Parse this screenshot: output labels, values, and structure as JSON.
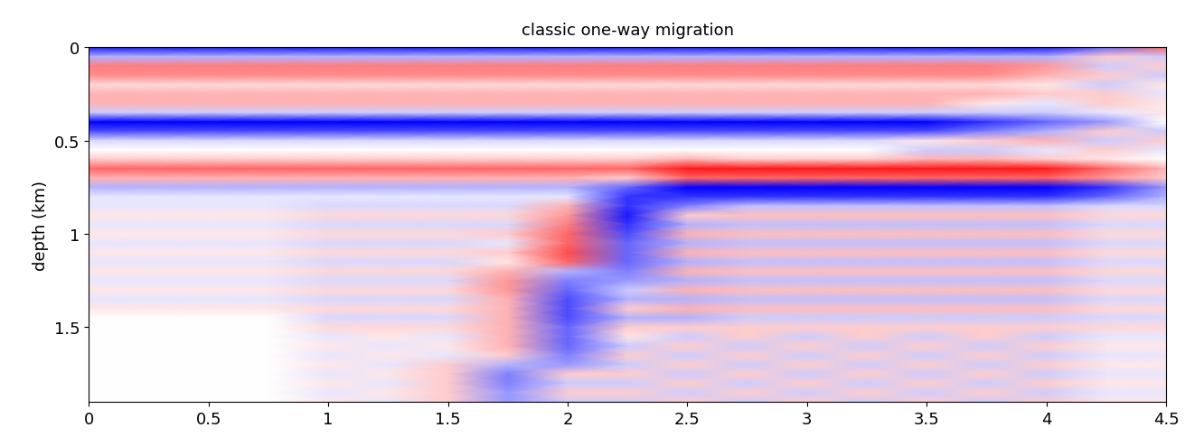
{
  "chart_data": {
    "type": "heatmap",
    "title": "classic one-way migration",
    "y_label": "depth (km)",
    "x": [
      0,
      0.25,
      0.5,
      0.75,
      1,
      1.25,
      1.5,
      1.75,
      2,
      2.25,
      2.5,
      2.75,
      3,
      3.25,
      3.5,
      3.75,
      4,
      4.25,
      4.5
    ],
    "y": [
      0,
      0.05,
      0.1,
      0.15,
      0.2,
      0.25,
      0.3,
      0.35,
      0.4,
      0.45,
      0.5,
      0.55,
      0.6,
      0.65,
      0.7,
      0.75,
      0.8,
      0.85,
      0.9,
      0.95,
      1,
      1.05,
      1.1,
      1.15,
      1.2,
      1.25,
      1.3,
      1.35,
      1.4,
      1.45,
      1.5,
      1.55,
      1.6,
      1.65,
      1.7,
      1.75,
      1.8,
      1.85,
      1.9
    ],
    "xlim": [
      0,
      4.5
    ],
    "xticks": [
      0,
      0.5,
      1,
      1.5,
      2,
      2.5,
      3,
      3.5,
      4,
      4.5
    ],
    "ylim": [
      1.9,
      0
    ],
    "yticks": [
      0,
      0.5,
      1,
      1.5
    ],
    "color_range": [
      -1,
      1
    ],
    "cells": [
      [
        -0.9,
        -0.9,
        -0.9,
        -0.9,
        -0.9,
        -0.9,
        -0.9,
        -0.9,
        -0.9,
        -0.9,
        -0.9,
        -0.9,
        -0.9,
        -0.9,
        -0.9,
        -0.9,
        -0.9,
        -0.6,
        0.6
      ],
      [
        -0.3,
        -0.3,
        -0.3,
        -0.3,
        -0.3,
        -0.3,
        -0.3,
        -0.3,
        -0.3,
        -0.3,
        -0.3,
        -0.3,
        -0.3,
        -0.3,
        -0.3,
        -0.3,
        -0.3,
        0.2,
        -0.2
      ],
      [
        0.5,
        0.5,
        0.5,
        0.5,
        0.5,
        0.5,
        0.5,
        0.5,
        0.5,
        0.5,
        0.5,
        0.5,
        0.5,
        0.5,
        0.5,
        0.5,
        0.4,
        -0.2,
        0.2
      ],
      [
        0.45,
        0.45,
        0.45,
        0.45,
        0.45,
        0.45,
        0.45,
        0.45,
        0.45,
        0.45,
        0.45,
        0.45,
        0.45,
        0.45,
        0.45,
        0.45,
        0.3,
        0.2,
        -0.2
      ],
      [
        0.15,
        0.15,
        0.15,
        0.15,
        0.15,
        0.15,
        0.15,
        0.15,
        0.15,
        0.15,
        0.15,
        0.15,
        0.15,
        0.15,
        0.15,
        0.15,
        0.1,
        -0.2,
        0.1
      ],
      [
        0.3,
        0.3,
        0.3,
        0.3,
        0.3,
        0.3,
        0.3,
        0.3,
        0.3,
        0.3,
        0.3,
        0.3,
        0.3,
        0.3,
        0.3,
        0.3,
        0.2,
        0.2,
        -0.1
      ],
      [
        0.3,
        0.3,
        0.3,
        0.3,
        0.3,
        0.3,
        0.3,
        0.3,
        0.3,
        0.3,
        0.3,
        0.3,
        0.3,
        0.3,
        0.3,
        0.1,
        -0.1,
        0.2,
        0.1
      ],
      [
        -0.2,
        -0.2,
        -0.2,
        -0.2,
        -0.2,
        -0.2,
        -0.2,
        -0.2,
        -0.2,
        -0.2,
        -0.2,
        -0.2,
        -0.2,
        -0.2,
        -0.2,
        -0.2,
        -0.2,
        -0.1,
        0.1
      ],
      [
        -1,
        -1,
        -1,
        -1,
        -1,
        -1,
        -1,
        -1,
        -1,
        -1,
        -1,
        -1,
        -1,
        -1,
        -1,
        -0.8,
        -0.6,
        -0.4,
        0
      ],
      [
        -0.7,
        -0.7,
        -0.7,
        -0.7,
        -0.7,
        -0.7,
        -0.7,
        -0.7,
        -0.7,
        -0.7,
        -0.7,
        -0.7,
        -0.7,
        -0.7,
        -0.7,
        -0.5,
        -0.3,
        0.2,
        -0.2
      ],
      [
        -0.15,
        -0.15,
        -0.15,
        -0.15,
        -0.15,
        -0.15,
        -0.15,
        -0.15,
        -0.15,
        -0.15,
        -0.15,
        -0.15,
        -0.15,
        -0.15,
        0.1,
        0.2,
        0.3,
        -0.2,
        0.2
      ],
      [
        0,
        0,
        0,
        0,
        0,
        0,
        0,
        0,
        0,
        0,
        0,
        0,
        0,
        0,
        -0.2,
        -0.2,
        -0.1,
        0.2,
        -0.1
      ],
      [
        0.2,
        0.2,
        0.2,
        0.2,
        0.2,
        0.2,
        0.2,
        0.2,
        0.2,
        0.2,
        0.3,
        0.2,
        0.2,
        0.2,
        0.3,
        0.3,
        0.2,
        0.1,
        0
      ],
      [
        0.6,
        0.6,
        0.6,
        0.6,
        0.6,
        0.6,
        0.6,
        0.6,
        0.6,
        0.6,
        0.9,
        0.9,
        0.9,
        0.9,
        0.9,
        0.9,
        0.9,
        0.6,
        0.3
      ],
      [
        0.3,
        0.3,
        0.3,
        0.3,
        0.3,
        0.3,
        0.3,
        0.3,
        0.3,
        0.2,
        0.6,
        0.6,
        0.6,
        0.6,
        0.6,
        0.6,
        0.6,
        0.4,
        0.2
      ],
      [
        -0.3,
        -0.3,
        -0.3,
        -0.3,
        -0.3,
        -0.3,
        -0.3,
        -0.3,
        -0.3,
        -0.6,
        -1,
        -1,
        -1,
        -1,
        -1,
        -1,
        -1,
        -0.8,
        -0.4
      ],
      [
        -0.1,
        -0.1,
        -0.1,
        -0.1,
        -0.1,
        -0.1,
        -0.1,
        -0.1,
        -0.1,
        -0.8,
        -0.8,
        -0.8,
        -0.8,
        -0.8,
        -0.8,
        -0.8,
        -0.8,
        -0.6,
        -0.3
      ],
      [
        -0.1,
        -0.1,
        -0.1,
        -0.1,
        -0.15,
        -0.15,
        -0.15,
        -0.15,
        0.3,
        -0.8,
        -0.5,
        -0.25,
        -0.25,
        -0.25,
        -0.25,
        -0.25,
        -0.25,
        -0.15,
        -0.15
      ],
      [
        0.1,
        0.1,
        0.1,
        0.1,
        0.15,
        0.15,
        0.15,
        0.15,
        0.4,
        -0.9,
        0.2,
        0.25,
        0.25,
        0.25,
        0.25,
        0.25,
        0.25,
        0.15,
        0.15
      ],
      [
        -0.1,
        -0.1,
        -0.1,
        -0.1,
        -0.15,
        -0.15,
        -0.15,
        -0.15,
        0.5,
        -0.8,
        -0.3,
        -0.25,
        -0.25,
        -0.25,
        -0.25,
        -0.25,
        -0.25,
        -0.15,
        -0.15
      ],
      [
        0.1,
        0.1,
        0.1,
        0.1,
        0.15,
        0.15,
        0.15,
        0.2,
        0.6,
        -0.7,
        0.3,
        0.25,
        0.25,
        0.25,
        0.25,
        0.25,
        0.25,
        0.15,
        0.15
      ],
      [
        -0.1,
        -0.1,
        -0.1,
        -0.1,
        -0.15,
        -0.15,
        -0.15,
        -0.1,
        0.6,
        -0.6,
        -0.3,
        -0.25,
        -0.25,
        -0.25,
        -0.25,
        -0.25,
        -0.25,
        -0.15,
        -0.15
      ],
      [
        0.1,
        0.1,
        0.1,
        0.1,
        0.15,
        0.15,
        0.15,
        0.2,
        0.7,
        -0.6,
        0.3,
        0.25,
        0.25,
        0.25,
        0.25,
        0.25,
        0.25,
        0.15,
        0.15
      ],
      [
        -0.1,
        -0.1,
        -0.1,
        -0.1,
        -0.15,
        -0.15,
        -0.15,
        0.1,
        0.6,
        -0.6,
        -0.3,
        -0.25,
        -0.25,
        -0.25,
        -0.25,
        -0.25,
        -0.25,
        -0.15,
        -0.15
      ],
      [
        0.1,
        0.1,
        0.1,
        0.1,
        0.15,
        0.15,
        0.15,
        0.3,
        -0.3,
        -0.5,
        0.3,
        0.25,
        0.25,
        0.25,
        0.25,
        0.25,
        0.25,
        0.15,
        0.15
      ],
      [
        -0.1,
        -0.1,
        -0.1,
        -0.1,
        -0.15,
        -0.15,
        -0.15,
        0.4,
        -0.5,
        -0.4,
        -0.3,
        -0.25,
        -0.25,
        -0.25,
        -0.25,
        -0.25,
        -0.25,
        -0.15,
        -0.15
      ],
      [
        0.1,
        0.1,
        0.1,
        0.1,
        0.15,
        0.15,
        0.15,
        0.4,
        -0.6,
        -0.2,
        0.3,
        0.25,
        0.25,
        0.25,
        0.25,
        0.25,
        0.25,
        0.15,
        0.15
      ],
      [
        -0.1,
        -0.1,
        -0.1,
        -0.1,
        -0.15,
        -0.15,
        -0.15,
        0.3,
        -0.7,
        -0.3,
        -0.3,
        -0.25,
        -0.25,
        -0.25,
        -0.25,
        -0.25,
        -0.25,
        -0.15,
        -0.15
      ],
      [
        0.1,
        0.1,
        0.1,
        0.1,
        0.15,
        0.15,
        0.15,
        0.3,
        -0.7,
        0.2,
        0.3,
        0.25,
        0.25,
        0.25,
        0.25,
        0.25,
        0.25,
        0.15,
        0.15
      ],
      [
        0,
        0,
        0,
        0,
        -0.15,
        -0.15,
        -0.15,
        0.3,
        -0.7,
        -0.3,
        -0.3,
        -0.2,
        -0.2,
        -0.2,
        -0.2,
        -0.2,
        -0.2,
        -0.15,
        -0.15
      ],
      [
        0,
        0,
        0,
        0,
        0.15,
        0.15,
        0.15,
        0.3,
        -0.6,
        0.2,
        0.2,
        0.2,
        0.2,
        0.2,
        0.2,
        0.2,
        0.2,
        0.15,
        0.15
      ],
      [
        0,
        0,
        0,
        0,
        -0.1,
        0.1,
        -0.1,
        0.3,
        -0.6,
        0.1,
        -0.2,
        0.2,
        -0.2,
        0.2,
        -0.2,
        0.2,
        -0.2,
        -0.1,
        -0.1
      ],
      [
        0,
        0,
        0,
        0,
        0.1,
        -0.1,
        0.1,
        0.3,
        -0.6,
        -0.2,
        0.2,
        -0.2,
        0.2,
        -0.2,
        0.2,
        -0.2,
        0.2,
        0.1,
        0.1
      ],
      [
        0,
        0,
        0,
        0,
        -0.1,
        0.1,
        -0.1,
        0.2,
        -0.5,
        0.2,
        -0.2,
        0.2,
        -0.2,
        0.2,
        -0.2,
        0.2,
        -0.2,
        -0.1,
        -0.1
      ],
      [
        0,
        0,
        0,
        0,
        0.1,
        -0.1,
        0.2,
        -0.3,
        -0.4,
        -0.2,
        0.2,
        -0.2,
        0.2,
        -0.2,
        0.2,
        -0.2,
        0.2,
        0.1,
        0.1
      ],
      [
        0,
        0,
        0,
        0,
        -0.1,
        0.1,
        0.2,
        -0.5,
        0.2,
        0.2,
        -0.2,
        0.2,
        -0.2,
        0.2,
        -0.2,
        0.2,
        -0.2,
        -0.1,
        -0.1
      ],
      [
        0,
        0,
        0,
        0,
        0.1,
        -0.1,
        0.2,
        -0.5,
        -0.2,
        -0.2,
        0.2,
        -0.2,
        0.2,
        -0.2,
        0.2,
        -0.2,
        0.2,
        0.1,
        0.1
      ],
      [
        0,
        0,
        0,
        0,
        -0.1,
        0.1,
        0.2,
        -0.4,
        0.2,
        0.2,
        -0.2,
        0.2,
        -0.2,
        0.2,
        -0.2,
        0.2,
        -0.2,
        -0.1,
        -0.1
      ],
      [
        0,
        0,
        0,
        0,
        0.1,
        -0.1,
        0.2,
        -0.4,
        -0.2,
        -0.2,
        0.2,
        -0.2,
        0.2,
        -0.2,
        0.2,
        -0.2,
        0.2,
        0.1,
        0.1
      ]
    ]
  }
}
